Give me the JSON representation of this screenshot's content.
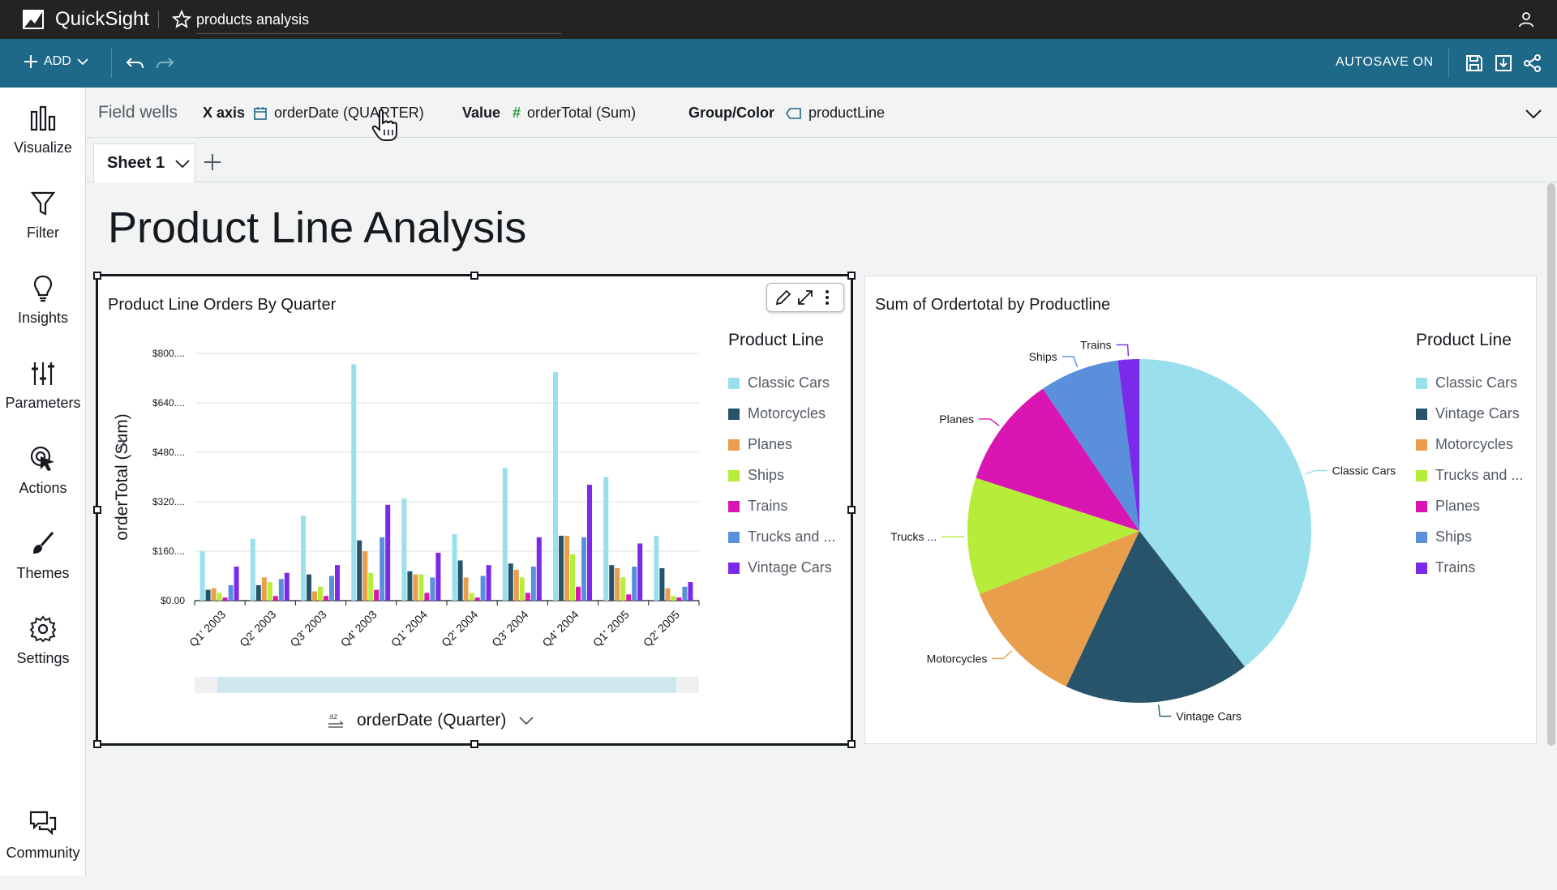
{
  "app": {
    "brand": "QuickSight",
    "analysis_name": "products analysis"
  },
  "toolbar": {
    "add_label": "ADD",
    "autosave_label": "AUTOSAVE ON"
  },
  "nav": [
    {
      "label": "Visualize",
      "icon": "bar-chart-icon"
    },
    {
      "label": "Filter",
      "icon": "filter-icon"
    },
    {
      "label": "Insights",
      "icon": "lightbulb-icon"
    },
    {
      "label": "Parameters",
      "icon": "sliders-icon"
    },
    {
      "label": "Actions",
      "icon": "pointer-icon"
    },
    {
      "label": "Themes",
      "icon": "brush-icon"
    },
    {
      "label": "Settings",
      "icon": "gear-icon"
    },
    {
      "label": "Community",
      "icon": "chat-icon"
    }
  ],
  "fieldwells": {
    "title": "Field wells",
    "x_axis_label": "X axis",
    "x_axis_value": "orderDate (QUARTER)",
    "value_label": "Value",
    "value_value": "orderTotal (Sum)",
    "group_label": "Group/Color",
    "group_value": "productLine"
  },
  "sheet": {
    "tab_label": "Sheet 1"
  },
  "page_title": "Product Line Analysis",
  "bar_visual": {
    "title": "Product Line Orders By Quarter",
    "legend_title": "Product Line",
    "x_field_label": "orderDate (Quarter)",
    "y_axis_label": "orderTotal (Sum)"
  },
  "pie_visual": {
    "title": "Sum of Ordertotal by Productline",
    "legend_title": "Product Line"
  },
  "colors": {
    "classic_cars": "#9adfec",
    "motorcycles": "#e89e4a",
    "vintage_cars": "#27546a",
    "planes": "#d915b2",
    "ships": "#5a8fdb",
    "trains": "#7a2ae8",
    "trucks": "#b6ec3a",
    "accent": "#1e6888"
  },
  "chart_data": [
    {
      "type": "bar",
      "title": "Product Line Orders By Quarter",
      "xlabel": "orderDate (Quarter)",
      "ylabel": "orderTotal (Sum)",
      "ylim": [
        0,
        800
      ],
      "y_ticks": [
        "$0.00",
        "$160....",
        "$320....",
        "$480....",
        "$640....",
        "$800...."
      ],
      "y_tick_values": [
        0,
        160,
        320,
        480,
        640,
        800
      ],
      "categories": [
        "Q1' 2003",
        "Q2' 2003",
        "Q3' 2003",
        "Q4' 2003",
        "Q1' 2004",
        "Q2' 2004",
        "Q3' 2004",
        "Q4' 2004",
        "Q1' 2005",
        "Q2' 2005"
      ],
      "legend_position": "right",
      "series": [
        {
          "name": "Classic Cars",
          "color": "#9adfec",
          "values": [
            160,
            200,
            275,
            765,
            330,
            215,
            430,
            740,
            400,
            210
          ]
        },
        {
          "name": "Motorcycles",
          "color": "#27546a",
          "values": [
            35,
            50,
            85,
            195,
            95,
            130,
            120,
            210,
            115,
            105
          ]
        },
        {
          "name": "Planes",
          "color": "#e89e4a",
          "values": [
            40,
            75,
            30,
            160,
            85,
            75,
            100,
            210,
            105,
            40
          ]
        },
        {
          "name": "Ships",
          "color": "#b6ec3a",
          "values": [
            25,
            60,
            45,
            90,
            85,
            25,
            75,
            150,
            75,
            15
          ]
        },
        {
          "name": "Trains",
          "color": "#d915b2",
          "values": [
            10,
            15,
            15,
            35,
            25,
            10,
            25,
            45,
            20,
            10
          ]
        },
        {
          "name": "Trucks and ...",
          "color": "#5a8fdb",
          "values": [
            50,
            70,
            80,
            205,
            75,
            80,
            110,
            205,
            110,
            45
          ]
        },
        {
          "name": "Vintage Cars",
          "color": "#7a2ae8",
          "values": [
            110,
            90,
            115,
            310,
            155,
            115,
            205,
            375,
            185,
            60
          ]
        }
      ]
    },
    {
      "type": "pie",
      "title": "Sum of Ordertotal by Productline",
      "legend_title": "Product Line",
      "legend_position": "right",
      "slices": [
        {
          "name": "Classic Cars",
          "label": "Classic Cars",
          "color": "#9adfec",
          "value": 39.5
        },
        {
          "name": "Vintage Cars",
          "label": "Vintage Cars",
          "color": "#27546a",
          "value": 17.5
        },
        {
          "name": "Motorcycles",
          "label": "Motorcycles",
          "color": "#e89e4a",
          "value": 12.0
        },
        {
          "name": "Trucks and ...",
          "label": "Trucks ...",
          "color": "#b6ec3a",
          "value": 11.0
        },
        {
          "name": "Planes",
          "label": "Planes",
          "color": "#d915b2",
          "value": 10.5
        },
        {
          "name": "Ships",
          "label": "Ships",
          "color": "#5a8fdb",
          "value": 7.5
        },
        {
          "name": "Trains",
          "label": "Trains",
          "color": "#7a2ae8",
          "value": 2.0
        }
      ]
    }
  ]
}
